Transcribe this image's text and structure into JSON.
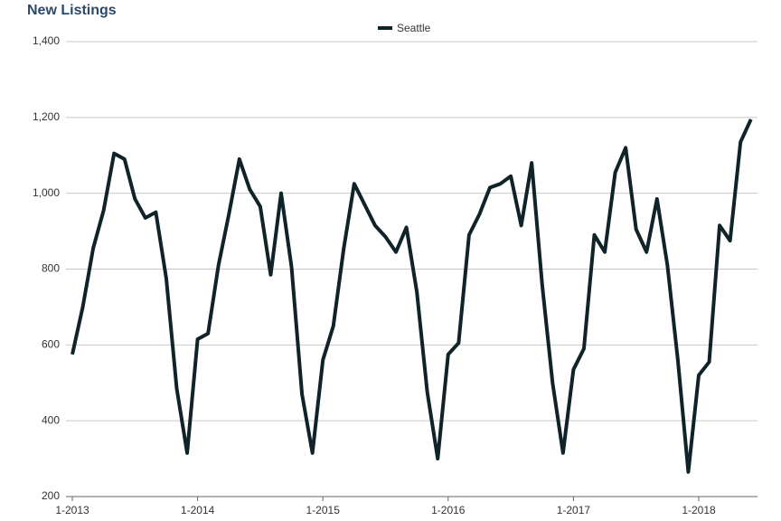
{
  "chart_data": {
    "type": "line",
    "title": "New Listings",
    "categories": [
      "1-2013",
      null,
      null,
      null,
      null,
      null,
      null,
      null,
      null,
      null,
      null,
      null,
      "1-2014",
      null,
      null,
      null,
      null,
      null,
      null,
      null,
      null,
      null,
      null,
      null,
      "1-2015",
      null,
      null,
      null,
      null,
      null,
      null,
      null,
      null,
      null,
      null,
      null,
      "1-2016",
      null,
      null,
      null,
      null,
      null,
      null,
      null,
      null,
      null,
      null,
      null,
      "1-2017",
      null,
      null,
      null,
      null,
      null,
      null,
      null,
      null,
      null,
      null,
      null,
      "1-2018",
      null,
      null,
      null,
      null,
      null
    ],
    "series": [
      {
        "name": "Seattle",
        "color": "#0f2328",
        "values": [
          575,
          700,
          855,
          955,
          1105,
          1090,
          985,
          935,
          950,
          775,
          485,
          315,
          615,
          630,
          810,
          945,
          1090,
          1010,
          965,
          785,
          1000,
          805,
          470,
          315,
          560,
          650,
          855,
          1025,
          970,
          915,
          885,
          845,
          910,
          740,
          475,
          300,
          575,
          605,
          890,
          945,
          1015,
          1025,
          1045,
          915,
          1080,
          760,
          500,
          315,
          535,
          590,
          890,
          845,
          1055,
          1120,
          905,
          845,
          985,
          810,
          560,
          265,
          520,
          555,
          915,
          875,
          1135,
          1195
        ]
      }
    ],
    "ylim": [
      200,
      1400
    ],
    "yticks": [
      {
        "value": 200,
        "label": "200"
      },
      {
        "value": 400,
        "label": "400"
      },
      {
        "value": 600,
        "label": "600"
      },
      {
        "value": 800,
        "label": "800"
      },
      {
        "value": 1000,
        "label": "1,000"
      },
      {
        "value": 1200,
        "label": "1,200"
      },
      {
        "value": 1400,
        "label": "1,400"
      }
    ],
    "grid": true,
    "legend": "top"
  }
}
